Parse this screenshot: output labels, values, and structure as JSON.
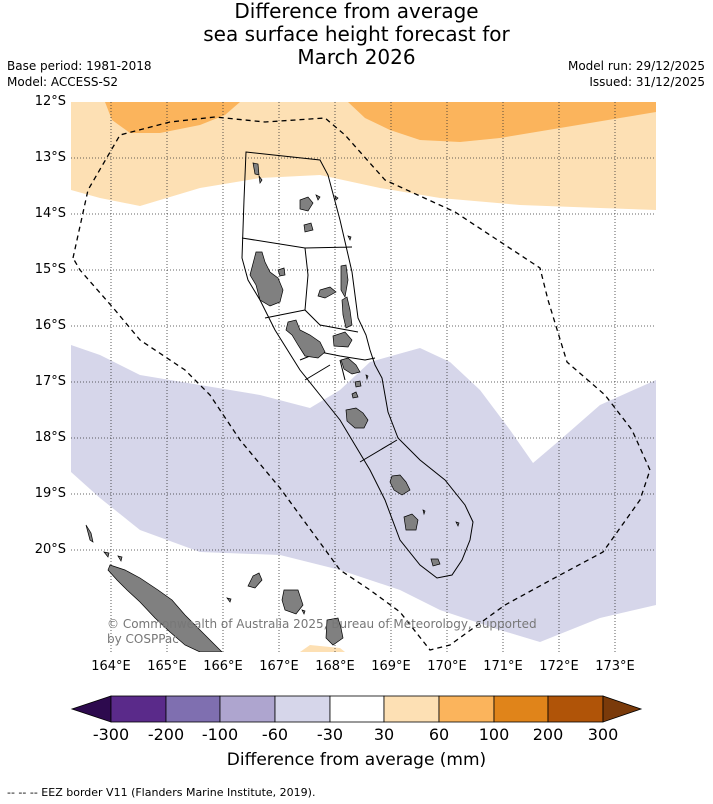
{
  "title": {
    "line1": "Difference from average",
    "line2": "sea surface height forecast for",
    "line3": "March 2026"
  },
  "meta": {
    "base_period": "Base period: 1981-2018",
    "model": "Model: ACCESS-S2",
    "model_run": "Model run: 29/12/2025",
    "issued": "Issued: 31/12/2025"
  },
  "map": {
    "lat_range": [
      -21.8,
      -12.0
    ],
    "lon_range": [
      163.3,
      173.7
    ],
    "lat_ticks": [
      "12°S",
      "13°S",
      "14°S",
      "15°S",
      "16°S",
      "17°S",
      "18°S",
      "19°S",
      "20°S"
    ],
    "lon_ticks": [
      "164°E",
      "165°E",
      "166°E",
      "167°E",
      "168°E",
      "169°E",
      "170°E",
      "171°E",
      "172°E",
      "173°E"
    ],
    "gridlines": true,
    "land_color": "#808080",
    "eez_style": "dashed",
    "copyright": "© Commonwealth of Australia 2025, Bureau of Meteorology, supported by COSPPac"
  },
  "colorbar": {
    "title": "Difference from average (mm)",
    "labels": [
      "-300",
      "-200",
      "-100",
      "-60",
      "-30",
      "30",
      "60",
      "100",
      "200",
      "300"
    ],
    "colors": [
      "#2d0a4e",
      "#5a2a8a",
      "#7f6fb0",
      "#aea5cf",
      "#d6d6ea",
      "#ffffff",
      "#fde0b4",
      "#fbb45c",
      "#e0841a",
      "#b05408",
      "#7a3a0a"
    ]
  },
  "footnote": "--  --  -- EEZ border V11 (Flanders Marine Institute, 2019)."
}
